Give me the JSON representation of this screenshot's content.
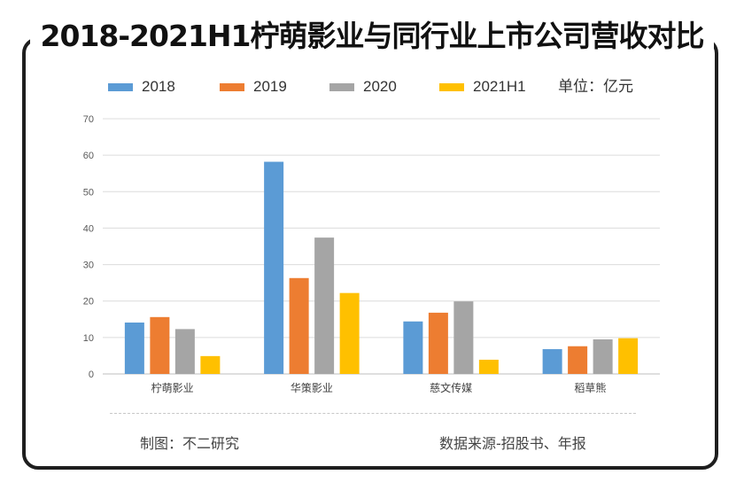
{
  "title": "2018-2021H1柠萌影业与同行业上市公司营收对比",
  "unit": "单位：亿元",
  "footer": {
    "left": "制图：不二研究",
    "right": "数据来源-招股书、年报"
  },
  "colors": {
    "frame": "#1e1e1e",
    "grid": "#dcdcdc",
    "axis_text": "#595959"
  },
  "chart_data": {
    "type": "bar",
    "categories": [
      "柠萌影业",
      "华策影业",
      "慈文传媒",
      "稻草熊"
    ],
    "series": [
      {
        "name": "2018",
        "color": "#5b9bd5",
        "values": [
          14.1,
          58.2,
          14.4,
          6.8
        ]
      },
      {
        "name": "2019",
        "color": "#ed7d31",
        "values": [
          15.6,
          26.3,
          16.8,
          7.6
        ]
      },
      {
        "name": "2020",
        "color": "#a5a5a5",
        "values": [
          12.3,
          37.4,
          19.9,
          9.5
        ]
      },
      {
        "name": "2021H1",
        "color": "#ffc000",
        "values": [
          4.9,
          22.2,
          3.9,
          9.8
        ]
      }
    ],
    "yticks": [
      "0",
      "10",
      "20",
      "30",
      "40",
      "50",
      "60",
      "70"
    ],
    "ylim": [
      0,
      70
    ],
    "grid": true,
    "legend": "top"
  }
}
